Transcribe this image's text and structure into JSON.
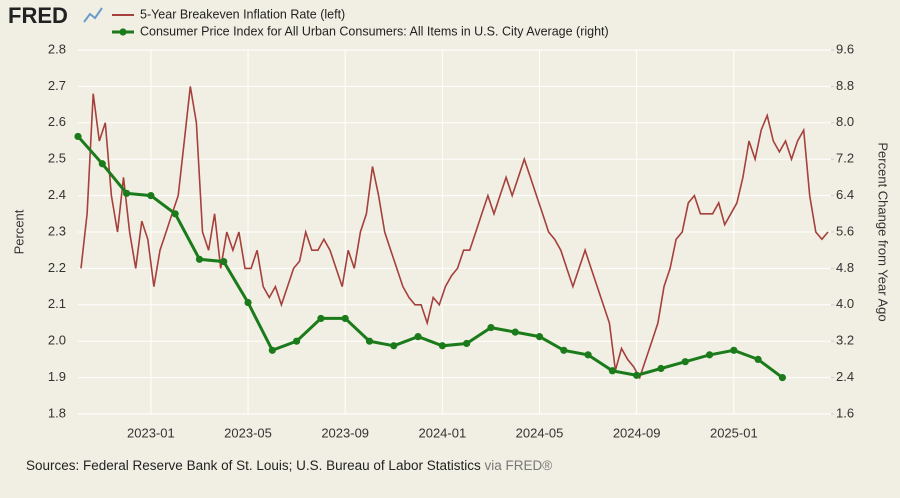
{
  "logo": "FRED",
  "source": {
    "text": "Sources: Federal Reserve Bank of St. Louis; U.S. Bureau of Labor Statistics",
    "via": "via FRED®"
  },
  "chart_data": {
    "type": "line",
    "ylabel": "Percent",
    "y2label": "Percent Change from Year Ago",
    "xlim": [
      "2022-10",
      "2025-05"
    ],
    "xticks": [
      "2023-01",
      "2023-05",
      "2023-09",
      "2024-01",
      "2024-05",
      "2024-09",
      "2025-01"
    ],
    "ylim": [
      1.8,
      2.8
    ],
    "yticks": [
      1.8,
      1.9,
      {
        "value": 2,
        "label": "2.0"
      },
      2.1,
      2.2,
      2.3,
      2.4,
      2.5,
      2.6,
      2.7,
      2.8
    ],
    "y2lim": [
      1.6,
      9.6
    ],
    "y2ticks": [
      1.6,
      2.4,
      3.2,
      {
        "value": 4,
        "label": "4.0"
      },
      4.8,
      5.6,
      6.4,
      7.2,
      {
        "value": 8,
        "label": "8.0"
      },
      8.8,
      9.6
    ],
    "grid": true,
    "series": [
      {
        "name": "5-Year Breakeven Inflation Rate (left)",
        "color": "#a5403c",
        "axis": "y",
        "x": [
          "2022-10",
          "2022-11",
          "2022-12",
          "2023-01",
          "2023-02",
          "2023-03",
          "2023-04",
          "2023-05",
          "2023-06",
          "2023-07",
          "2023-08",
          "2023-09",
          "2023-10",
          "2023-11",
          "2023-12",
          "2024-01",
          "2024-02",
          "2024-03",
          "2024-04",
          "2024-05",
          "2024-06",
          "2024-07",
          "2024-08",
          "2024-09",
          "2024-10",
          "2024-11",
          "2024-12",
          "2025-01",
          "2025-02",
          "2025-03",
          "2025-04"
        ],
        "values": [
          [
            2.2,
            2.35,
            2.68,
            2.55
          ],
          [
            2.6,
            2.4,
            2.3,
            2.45
          ],
          [
            2.3,
            2.2,
            2.33,
            2.28
          ],
          [
            2.15,
            2.25,
            2.3,
            2.35
          ],
          [
            2.4,
            2.55,
            2.7,
            2.6
          ],
          [
            2.3,
            2.25,
            2.35,
            2.2
          ],
          [
            2.3,
            2.25,
            2.3,
            2.2
          ],
          [
            2.2,
            2.25,
            2.15,
            2.12
          ],
          [
            2.15,
            2.1,
            2.15,
            2.2
          ],
          [
            2.22,
            2.3,
            2.25,
            2.25
          ],
          [
            2.28,
            2.25,
            2.2,
            2.15
          ],
          [
            2.25,
            2.2,
            2.3,
            2.35
          ],
          [
            2.48,
            2.4,
            2.3,
            2.25
          ],
          [
            2.2,
            2.15,
            2.12,
            2.1
          ],
          [
            2.1,
            2.05,
            2.12,
            2.1
          ],
          [
            2.15,
            2.18,
            2.2,
            2.25
          ],
          [
            2.25,
            2.3,
            2.35,
            2.4
          ],
          [
            2.35,
            2.4,
            2.45,
            2.4
          ],
          [
            2.45,
            2.5,
            2.45,
            2.4
          ],
          [
            2.35,
            2.3,
            2.28,
            2.25
          ],
          [
            2.2,
            2.15,
            2.2,
            2.25
          ],
          [
            2.2,
            2.15,
            2.1,
            2.05
          ],
          [
            1.92,
            1.98,
            1.95,
            1.93
          ],
          [
            1.9,
            1.95,
            2.0,
            2.05
          ],
          [
            2.15,
            2.2,
            2.28,
            2.3
          ],
          [
            2.38,
            2.4,
            2.35,
            2.35
          ],
          [
            2.35,
            2.38,
            2.32,
            2.35
          ],
          [
            2.38,
            2.45,
            2.55,
            2.5
          ],
          [
            2.58,
            2.62,
            2.55,
            2.52
          ],
          [
            2.55,
            2.5,
            2.55,
            2.58
          ],
          [
            2.4,
            2.3,
            2.28,
            2.3
          ]
        ]
      },
      {
        "name": "Consumer Price Index for All Urban Consumers: All Items in U.S. City Average (right)",
        "color": "#1b7b1b",
        "axis": "y2",
        "markers": true,
        "x": [
          "2022-10",
          "2022-11",
          "2022-12",
          "2023-01",
          "2023-02",
          "2023-03",
          "2023-04",
          "2023-05",
          "2023-06",
          "2023-07",
          "2023-08",
          "2023-09",
          "2023-10",
          "2023-11",
          "2023-12",
          "2024-01",
          "2024-02",
          "2024-03",
          "2024-04",
          "2024-05",
          "2024-06",
          "2024-07",
          "2024-08",
          "2024-09",
          "2024-10",
          "2024-11",
          "2024-12",
          "2025-01",
          "2025-02",
          "2025-03"
        ],
        "values": [
          7.7,
          7.1,
          6.45,
          6.4,
          6.0,
          5.0,
          4.95,
          4.05,
          3.0,
          3.2,
          3.7,
          3.7,
          3.2,
          3.1,
          3.3,
          3.1,
          3.15,
          3.5,
          3.4,
          3.3,
          3.0,
          2.9,
          2.55,
          2.45,
          2.6,
          2.75,
          2.9,
          3.0,
          2.8,
          2.4
        ]
      }
    ]
  }
}
